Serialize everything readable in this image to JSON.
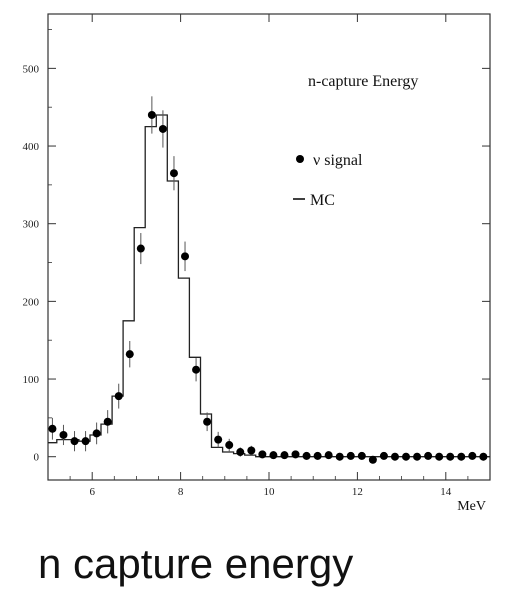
{
  "caption": "n capture energy",
  "chart_data": {
    "type": "histogram",
    "title": "n-capture  Energy",
    "xlabel": "MeV",
    "ylabel": "",
    "xlim": [
      5,
      15
    ],
    "ylim": [
      -30,
      570
    ],
    "xticks": [
      6,
      8,
      10,
      12,
      14
    ],
    "yticks": [
      0,
      100,
      200,
      300,
      400,
      500
    ],
    "grid": false,
    "legend_position": "upper-right",
    "series": [
      {
        "name": "ν signal",
        "style": "points-with-errorbars",
        "x": [
          5.1,
          5.35,
          5.6,
          5.85,
          6.1,
          6.35,
          6.6,
          6.85,
          7.1,
          7.35,
          7.6,
          7.85,
          8.1,
          8.35,
          8.6,
          8.85,
          9.1,
          9.35,
          9.6,
          9.85,
          10.1,
          10.35,
          10.6,
          10.85,
          11.1,
          11.35,
          11.6,
          11.85,
          12.1,
          12.35,
          12.6,
          12.85,
          13.1,
          13.35,
          13.6,
          13.85,
          14.1,
          14.35,
          14.6,
          14.85
        ],
        "y": [
          36,
          28,
          20,
          20,
          30,
          45,
          78,
          132,
          268,
          440,
          422,
          365,
          258,
          112,
          45,
          22,
          15,
          6,
          8,
          3,
          2,
          2,
          3,
          1,
          1,
          2,
          0,
          1,
          1,
          -4,
          1,
          0,
          0,
          0,
          1,
          0,
          0,
          0,
          1,
          0
        ],
        "err": [
          14,
          13,
          13,
          13,
          14,
          15,
          16,
          17,
          20,
          24,
          24,
          22,
          19,
          15,
          12,
          10,
          8,
          6,
          6,
          5,
          5,
          5,
          5,
          5,
          5,
          5,
          5,
          5,
          5,
          5,
          5,
          5,
          5,
          5,
          5,
          5,
          5,
          5,
          5,
          5
        ]
      },
      {
        "name": "MC",
        "style": "step",
        "x_edges": [
          5.0,
          5.2,
          5.45,
          5.7,
          5.95,
          6.2,
          6.45,
          6.7,
          6.95,
          7.2,
          7.45,
          7.7,
          7.95,
          8.2,
          8.45,
          8.7,
          8.95,
          9.2,
          9.45,
          9.7,
          15.0
        ],
        "y": [
          18,
          22,
          22,
          20,
          28,
          42,
          78,
          175,
          295,
          425,
          440,
          355,
          230,
          128,
          55,
          12,
          6,
          4,
          2,
          0
        ]
      }
    ]
  }
}
